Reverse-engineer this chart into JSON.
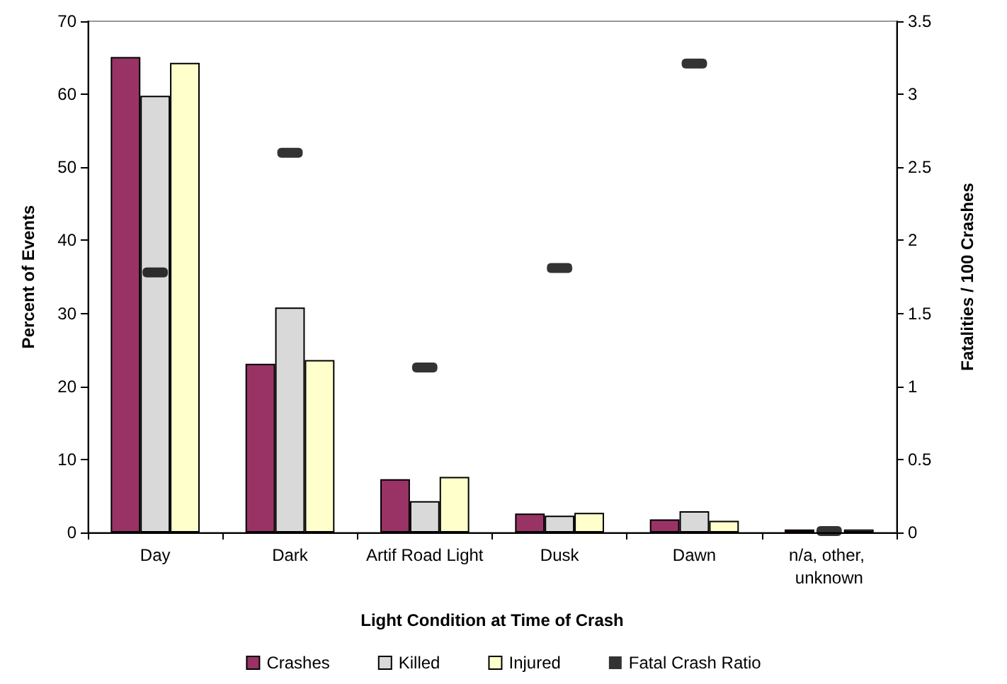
{
  "chart_data": {
    "type": "bar",
    "xlabel": "Light Condition at Time of Crash",
    "ylabel": "Percent of Events",
    "y2label": "Fatalities / 100 Crashes",
    "categories": [
      "Day",
      "Dark",
      "Artif Road Light",
      "Dusk",
      "Dawn",
      "n/a, other, unknown"
    ],
    "series": [
      {
        "name": "Crashes",
        "color": "#993366",
        "values": [
          65.1,
          23.1,
          7.3,
          2.6,
          1.8,
          0.4
        ]
      },
      {
        "name": "Killed",
        "color": "#d9d9d9",
        "values": [
          59.8,
          30.8,
          4.3,
          2.3,
          2.9,
          null
        ]
      },
      {
        "name": "Injured",
        "color": "#ffffcc",
        "values": [
          64.3,
          23.6,
          7.6,
          2.7,
          1.6,
          0.4
        ]
      },
      {
        "name": "Fatal Crash Ratio",
        "color": "#000000",
        "type": "scatter",
        "axis": "y2",
        "x": [
          "Day",
          "Dark",
          "Artif Road Light",
          "Dusk",
          "Dawn",
          "n/a, other, unknown"
        ],
        "values": [
          1.78,
          2.6,
          1.13,
          1.81,
          3.21,
          0.01
        ]
      }
    ],
    "ylim": [
      0,
      70
    ],
    "yticks": [
      0,
      10,
      20,
      30,
      40,
      50,
      60,
      70
    ],
    "y2lim": [
      0,
      3.5
    ],
    "y2ticks": [
      0,
      0.5,
      1,
      1.5,
      2,
      2.5,
      3,
      3.5
    ],
    "grid": false,
    "legend": "bottom"
  }
}
